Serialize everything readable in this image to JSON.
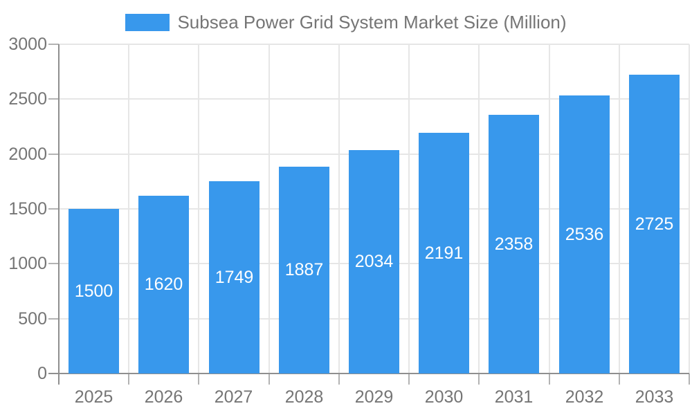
{
  "chart_data": {
    "type": "bar",
    "title": "Subsea Power Grid System Market Size (Million)",
    "legend": {
      "label": "Subsea Power Grid System Market Size (Million)",
      "position": "top"
    },
    "categories": [
      "2025",
      "2026",
      "2027",
      "2028",
      "2029",
      "2030",
      "2031",
      "2032",
      "2033"
    ],
    "values": [
      1500,
      1620,
      1749,
      1887,
      2034,
      2191,
      2358,
      2536,
      2725
    ],
    "xlabel": "",
    "ylabel": "",
    "ylim": [
      0,
      3000
    ],
    "yticks": [
      0,
      500,
      1000,
      1500,
      2000,
      2500,
      3000
    ],
    "grid": true,
    "colors": {
      "bar": "#3898ec",
      "value_label": "#ffffff",
      "axis_text": "#757575",
      "axis_line": "#8f8f8f",
      "grid_line": "#e6e6e6",
      "tick_mark": "#b3b3b3",
      "background": "#ffffff"
    }
  }
}
